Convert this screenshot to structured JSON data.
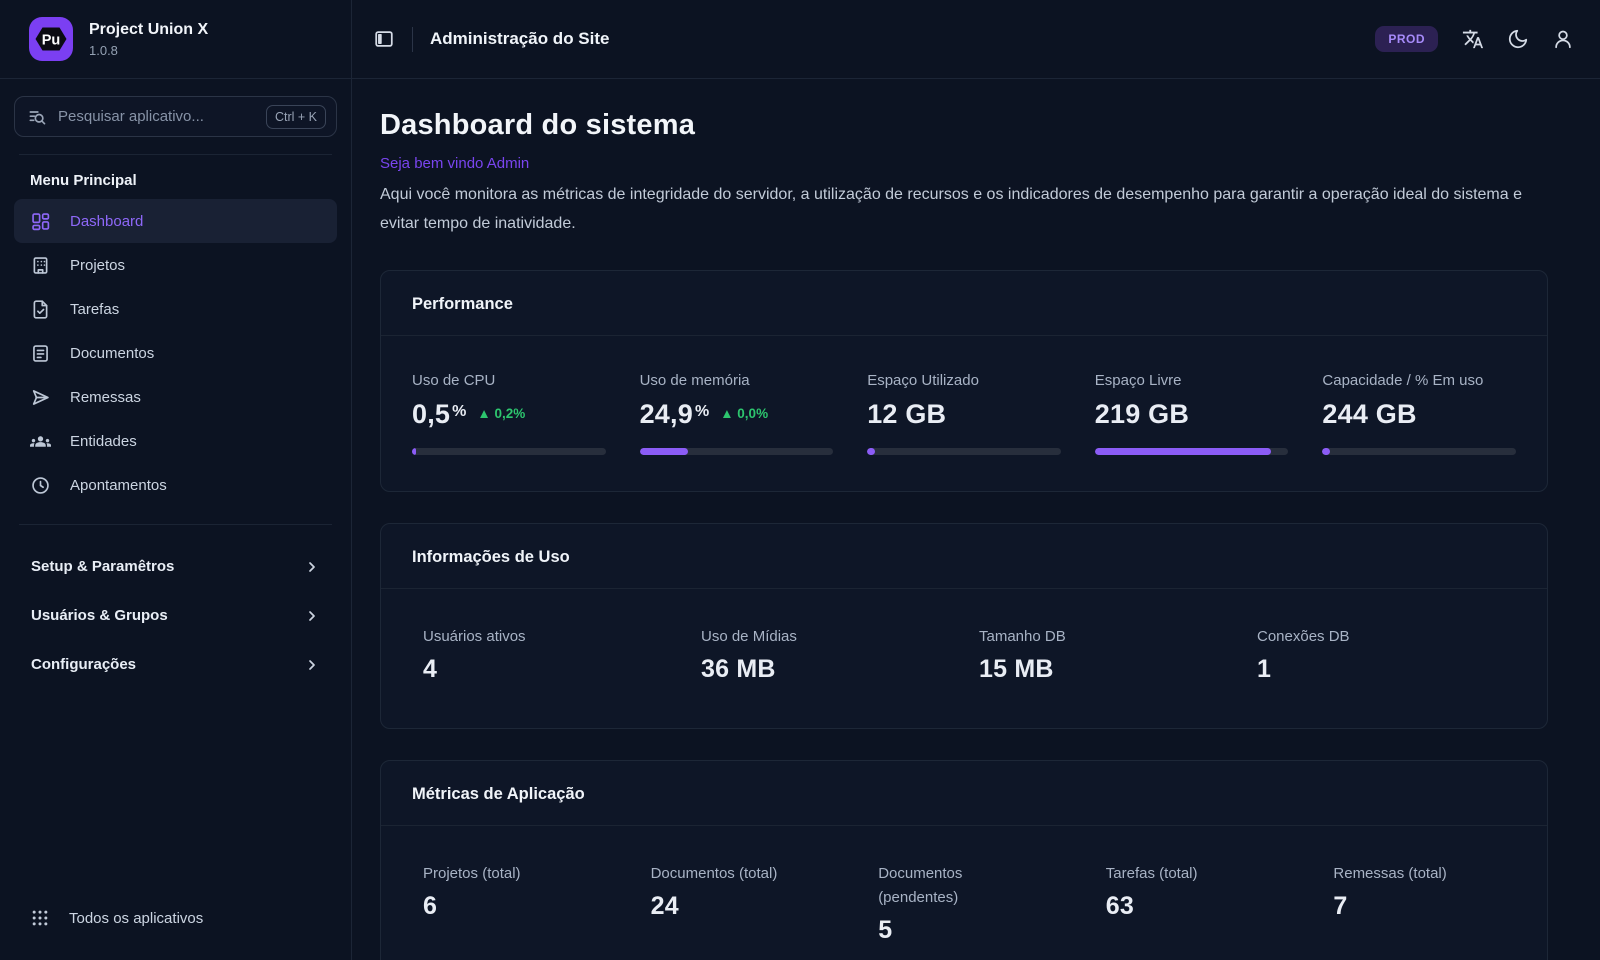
{
  "app": {
    "name": "Project Union X",
    "version": "1.0.8",
    "logo_text": "Pu"
  },
  "colors": {
    "accent_purple": "#8b5cf6",
    "delta_green": "#2dc56e",
    "badge_purple_bg": "#2c2153",
    "badge_purple_text": "#a78bfa",
    "background": "#0c1322",
    "card_background": "#0e1627"
  },
  "sidebar": {
    "search": {
      "placeholder": "Pesquisar aplicativo...",
      "shortcut": "Ctrl + K",
      "icon": "list-search-icon"
    },
    "menu_heading": "Menu Principal",
    "items": [
      {
        "label": "Dashboard",
        "icon": "dashboard-icon",
        "active": true
      },
      {
        "label": "Projetos",
        "icon": "building-icon",
        "active": false
      },
      {
        "label": "Tarefas",
        "icon": "file-check-icon",
        "active": false
      },
      {
        "label": "Documentos",
        "icon": "file-text-icon",
        "active": false
      },
      {
        "label": "Remessas",
        "icon": "send-icon",
        "active": false
      },
      {
        "label": "Entidades",
        "icon": "users-group-icon",
        "active": false
      },
      {
        "label": "Apontamentos",
        "icon": "clock-icon",
        "active": false
      }
    ],
    "sections": [
      {
        "label": "Setup & Paramêtros",
        "icon": "chevron-right-icon"
      },
      {
        "label": "Usuários & Grupos",
        "icon": "chevron-right-icon"
      },
      {
        "label": "Configurações",
        "icon": "chevron-right-icon"
      }
    ],
    "footer": {
      "label": "Todos os aplicativos",
      "icon": "apps-grid-icon"
    }
  },
  "header": {
    "title": "Administração do Site",
    "env_badge": "PROD",
    "icons": [
      "panel-left-icon",
      "language-icon",
      "moon-icon",
      "user-icon"
    ]
  },
  "page": {
    "title": "Dashboard do sistema",
    "welcome": "Seja bem vindo Admin",
    "description": "Aqui você monitora as métricas de integridade do servidor, a utilização de recursos e os indicadores de desempenho para garantir a operação ideal do sistema e evitar tempo de inatividade."
  },
  "cards": {
    "performance": {
      "title": "Performance",
      "metrics": [
        {
          "label": "Uso de CPU",
          "value": "0,5",
          "unit": "%",
          "delta": "▲ 0,2%",
          "progress_pct": 2
        },
        {
          "label": "Uso de memória",
          "value": "24,9",
          "unit": "%",
          "delta": "▲ 0,0%",
          "progress_pct": 25
        },
        {
          "label": "Espaço Utilizado",
          "value": "12 GB",
          "progress_pct": 4
        },
        {
          "label": "Espaço Livre",
          "value": "219 GB",
          "progress_pct": 91
        },
        {
          "label": "Capacidade / % Em uso",
          "value": "244 GB",
          "progress_pct": 4
        }
      ]
    },
    "usage": {
      "title": "Informações de Uso",
      "metrics": [
        {
          "label": "Usuários ativos",
          "value": "4"
        },
        {
          "label": "Uso de Mídias",
          "value": "36 MB"
        },
        {
          "label": "Tamanho DB",
          "value": "15 MB"
        },
        {
          "label": "Conexões DB",
          "value": "1"
        }
      ]
    },
    "app_metrics": {
      "title": "Métricas de Aplicação",
      "metrics": [
        {
          "label": "Projetos (total)",
          "value": "6"
        },
        {
          "label": "Documentos (total)",
          "value": "24"
        },
        {
          "label": "Documentos (pendentes)",
          "value": "5"
        },
        {
          "label": "Tarefas (total)",
          "value": "63"
        },
        {
          "label": "Remessas (total)",
          "value": "7"
        }
      ]
    }
  }
}
